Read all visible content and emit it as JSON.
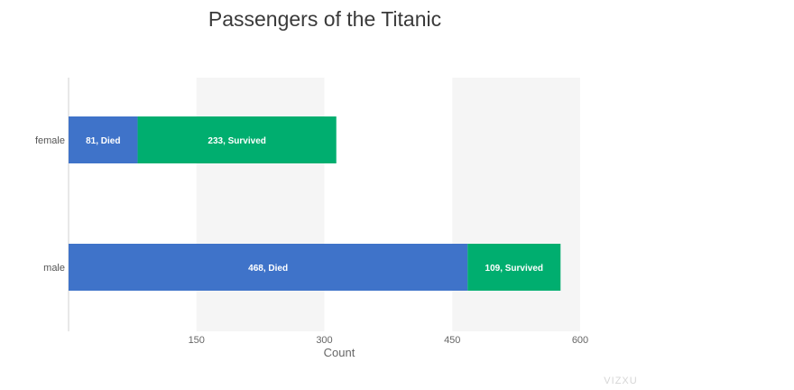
{
  "chart_data": {
    "type": "bar",
    "orientation": "horizontal",
    "stacked": true,
    "title": "Passengers of the Titanic",
    "xlabel": "Count",
    "ylabel": "",
    "categories": [
      "female",
      "male"
    ],
    "series": [
      {
        "name": "Died",
        "values": [
          81,
          468
        ],
        "color": "#3f73c9"
      },
      {
        "name": "Survived",
        "values": [
          233,
          109
        ],
        "color": "#00ae6f"
      }
    ],
    "data_labels": [
      [
        "81, Died",
        "233, Survived"
      ],
      [
        "468, Died",
        "109, Survived"
      ]
    ],
    "xlim": [
      0,
      600
    ],
    "xticks": [
      150,
      300,
      450,
      600
    ],
    "grid_band_color": "#f5f5f5",
    "legend": "none"
  },
  "watermark": "VIZXU"
}
